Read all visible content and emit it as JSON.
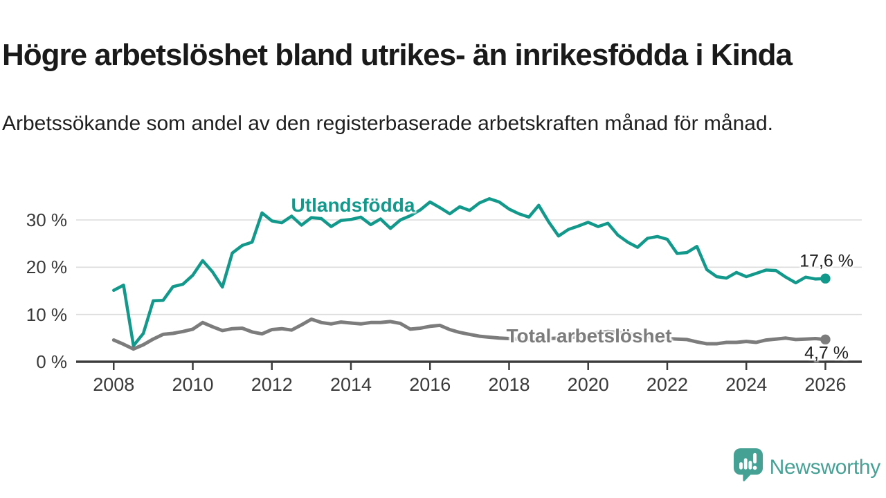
{
  "header": {
    "title": "Högre arbetslöshet bland utrikes- än inrikesfödda i Kinda",
    "subtitle": "Arbetssökande som andel av den registerbaserade arbetskraften månad för månad."
  },
  "chart_data": {
    "type": "line",
    "x_start": 2008,
    "x_step": 0.25,
    "x_end": 2026,
    "xlim": [
      2007.05,
      2026.92
    ],
    "ylim": [
      0,
      36
    ],
    "grid": "horizontal",
    "legend_position": "inline-labels",
    "xticks": [
      2008,
      2010,
      2012,
      2014,
      2016,
      2018,
      2020,
      2022,
      2024,
      2026
    ],
    "yticks": [
      {
        "value": 0,
        "label": "0 %"
      },
      {
        "value": 10,
        "label": "10 %"
      },
      {
        "value": 20,
        "label": "20 %"
      },
      {
        "value": 30,
        "label": "30 %"
      }
    ],
    "series": [
      {
        "name": "Utlandsfödda",
        "color": "#12998C",
        "end_label": "17,6 %",
        "end_value": 17.6,
        "values": [
          15.1,
          16.2,
          3.4,
          6.0,
          12.9,
          13.0,
          15.9,
          16.4,
          18.3,
          21.4,
          19.0,
          15.8,
          23.0,
          24.6,
          25.3,
          31.5,
          29.8,
          29.4,
          30.8,
          28.9,
          30.5,
          30.3,
          28.6,
          29.9,
          30.1,
          30.6,
          29.0,
          30.2,
          28.2,
          30.0,
          30.9,
          32.1,
          33.8,
          32.6,
          31.3,
          32.8,
          32.0,
          33.6,
          34.5,
          33.8,
          32.3,
          31.3,
          30.6,
          33.1,
          29.6,
          26.6,
          28.0,
          28.7,
          29.5,
          28.6,
          29.3,
          26.8,
          25.3,
          24.2,
          26.1,
          26.5,
          25.9,
          22.9,
          23.1,
          24.4,
          19.5,
          18.0,
          17.7,
          18.9,
          18.0,
          18.7,
          19.4,
          19.3,
          17.9,
          16.7,
          17.9,
          17.5,
          17.6
        ]
      },
      {
        "name": "Total arbetslöshet",
        "color": "#7C7C7C",
        "end_label": "4,7 %",
        "end_value": 4.7,
        "values": [
          4.6,
          3.7,
          2.7,
          3.6,
          4.8,
          5.8,
          6.0,
          6.4,
          6.9,
          8.3,
          7.4,
          6.6,
          7.0,
          7.1,
          6.3,
          5.9,
          6.8,
          7.0,
          6.7,
          7.8,
          9.0,
          8.3,
          8.0,
          8.4,
          8.2,
          8.0,
          8.3,
          8.3,
          8.5,
          8.1,
          6.9,
          7.1,
          7.5,
          7.7,
          6.8,
          6.2,
          5.8,
          5.4,
          5.2,
          5.0,
          4.9,
          4.8,
          4.7,
          4.8,
          4.9,
          5.0,
          5.1,
          5.3,
          5.5,
          6.2,
          6.4,
          6.2,
          6.0,
          5.6,
          5.3,
          5.1,
          4.9,
          4.8,
          4.7,
          4.2,
          3.8,
          3.8,
          4.1,
          4.1,
          4.3,
          4.1,
          4.6,
          4.8,
          5.0,
          4.7,
          4.8,
          4.9,
          4.7
        ]
      }
    ],
    "axis_color": "#3c3c3c",
    "grid_color": "#dcdcdc"
  },
  "footer": {
    "brand": "Newsworthy",
    "brand_color": "#46a195"
  }
}
